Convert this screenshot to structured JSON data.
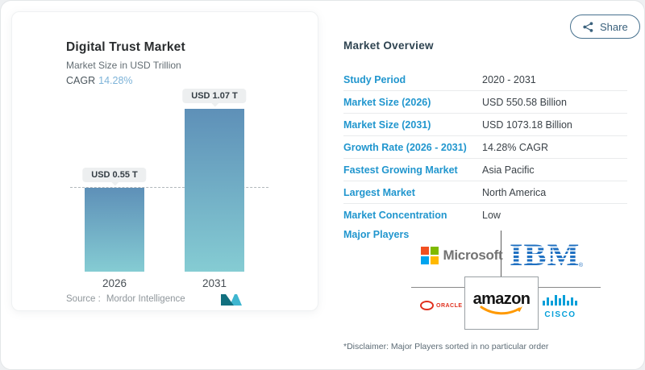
{
  "share": {
    "label": "Share"
  },
  "chart_panel": {
    "title": "Digital Trust Market",
    "subtitle": "Market Size in USD Trillion",
    "cagr_label": "CAGR",
    "cagr_value": "14.28%",
    "source_label": "Source :",
    "source_value": "Mordor Intelligence"
  },
  "chart_data": {
    "type": "bar",
    "title": "Digital Trust Market",
    "ylabel": "Market Size in USD Trillion",
    "categories": [
      "2026",
      "2031"
    ],
    "values": [
      0.55,
      1.07
    ],
    "value_labels": [
      "USD 0.55 T",
      "USD 1.07 T"
    ],
    "unit": "USD Trillion",
    "ylim": [
      0,
      1.2
    ],
    "reference_line": 0.55,
    "grid": false,
    "bar_gradient_top": "#5e90b8",
    "bar_gradient_bottom": "#85ccd3"
  },
  "overview": {
    "heading": "Market Overview",
    "rows": [
      {
        "label": "Study Period",
        "value": "2020 - 2031"
      },
      {
        "label": "Market Size (2026)",
        "value": "USD 550.58 Billion"
      },
      {
        "label": "Market Size (2031)",
        "value": "USD 1073.18 Billion"
      },
      {
        "label": "Growth Rate (2026 - 2031)",
        "value": "14.28% CAGR"
      },
      {
        "label": "Fastest Growing Market",
        "value": "Asia Pacific"
      },
      {
        "label": "Largest Market",
        "value": "North America"
      },
      {
        "label": "Market Concentration",
        "value": "Low"
      }
    ],
    "major_players_label": "Major Players",
    "players": {
      "microsoft": "Microsoft",
      "ibm": "IBM",
      "ibm_reg": "®",
      "oracle": "ORACLE",
      "amazon": "amazon",
      "cisco": "CISCO"
    },
    "disclaimer": "*Disclaimer: Major Players sorted in no particular order"
  },
  "colors": {
    "label_blue": "#2196ce",
    "cagr_blue": "#7db3d8",
    "ibm_blue": "#1f70c1",
    "cisco_blue": "#049fd9",
    "oracle_red": "#e0301e",
    "amazon_orange": "#ff9900",
    "ms_red": "#f25022",
    "ms_green": "#7fba00",
    "ms_blue": "#00a4ef",
    "ms_yellow": "#ffb900"
  }
}
